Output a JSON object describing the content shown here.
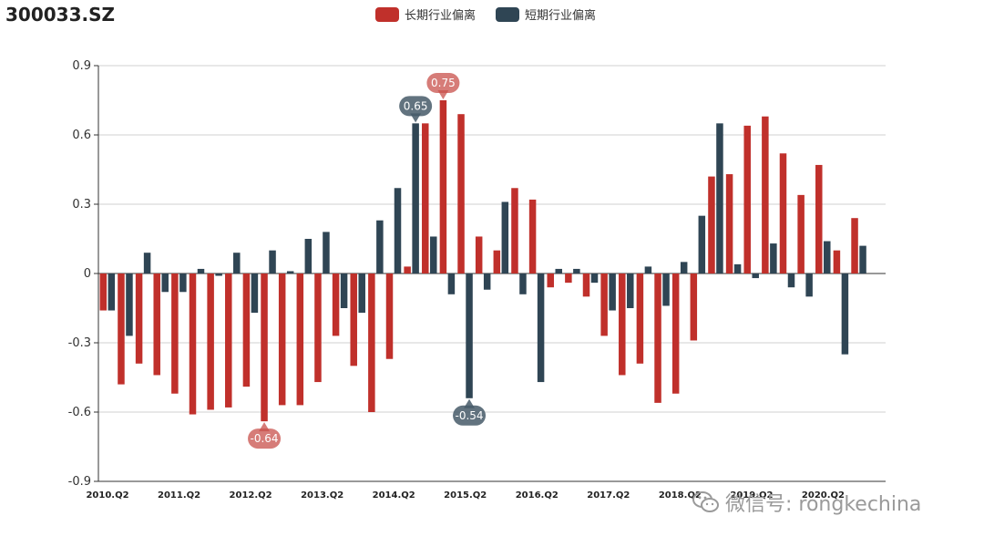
{
  "title": "300033.SZ",
  "watermark": "微信号: rongkechina",
  "colors": {
    "long": "#c0302b",
    "short": "#2f4554",
    "grid": "#d0d0d0",
    "axis": "#333333"
  },
  "chart_data": {
    "type": "bar",
    "title": "300033.SZ",
    "legend_position": "top-center",
    "grid": true,
    "ylim": [
      -0.9,
      0.9
    ],
    "y_ticks": [
      "0.9",
      "0.6",
      "0.3",
      "0",
      "-0.3",
      "-0.6",
      "-0.9"
    ],
    "x_tick_labels": [
      "2010.Q2",
      "2011.Q2",
      "2012.Q2",
      "2013.Q2",
      "2014.Q2",
      "2015.Q2",
      "2016.Q2",
      "2017.Q2",
      "2018.Q2",
      "2019.Q2",
      "2020.Q2"
    ],
    "x_tick_every": 4,
    "num_periods": 44,
    "series": [
      {
        "name": "长期行业偏离",
        "values": [
          -0.16,
          -0.48,
          -0.39,
          -0.44,
          -0.52,
          -0.61,
          -0.59,
          -0.58,
          -0.49,
          -0.64,
          -0.57,
          -0.57,
          -0.47,
          -0.27,
          -0.4,
          -0.6,
          -0.37,
          0.03,
          0.65,
          0.75,
          0.69,
          0.16,
          0.1,
          0.37,
          0.32,
          -0.06,
          -0.04,
          -0.1,
          -0.27,
          -0.44,
          -0.39,
          -0.56,
          -0.52,
          -0.29,
          0.42,
          0.43,
          0.64,
          0.68,
          0.52,
          0.34,
          0.47,
          0.1,
          0.24,
          null
        ]
      },
      {
        "name": "短期行业偏离",
        "values": [
          -0.16,
          -0.27,
          0.09,
          -0.08,
          -0.08,
          0.02,
          -0.01,
          0.09,
          -0.17,
          0.1,
          0.01,
          0.15,
          0.18,
          -0.15,
          -0.17,
          0.23,
          0.37,
          0.65,
          0.16,
          -0.09,
          -0.54,
          -0.07,
          0.31,
          -0.09,
          -0.47,
          0.02,
          0.02,
          -0.04,
          -0.16,
          -0.15,
          0.03,
          -0.14,
          0.05,
          0.25,
          0.65,
          0.04,
          -0.02,
          0.13,
          -0.06,
          -0.1,
          0.14,
          -0.35,
          0.12,
          null
        ]
      }
    ],
    "annotations": [
      {
        "series": "长期行业偏离",
        "index": 19,
        "label": "0.75"
      },
      {
        "series": "长期行业偏离",
        "index": 9,
        "label": "-0.64"
      },
      {
        "series": "短期行业偏离",
        "index": 17,
        "label": "0.65"
      },
      {
        "series": "短期行业偏离",
        "index": 20,
        "label": "-0.54"
      }
    ]
  }
}
